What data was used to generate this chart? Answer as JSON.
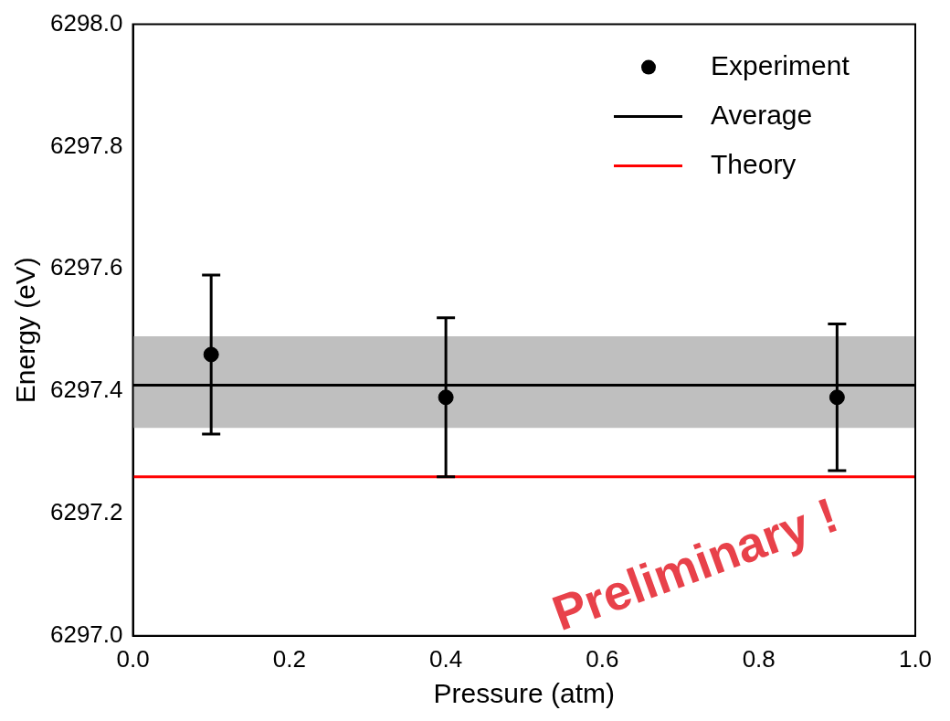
{
  "chart_data": {
    "type": "scatter",
    "xlabel": "Pressure (atm)",
    "ylabel": "Energy (eV)",
    "series": [
      {
        "name": "Experiment",
        "color": "#000000",
        "x": [
          0.1,
          0.4,
          0.9
        ],
        "values": [
          6297.46,
          6297.39,
          6297.39
        ],
        "errors": [
          0.13,
          0.13,
          0.12
        ]
      }
    ],
    "ref_lines": [
      {
        "axis": "y",
        "value": 6297.41,
        "label": "Average",
        "color": "#000000"
      },
      {
        "axis": "y",
        "value": 6297.26,
        "label": "Theory",
        "color": "#ff0000"
      }
    ],
    "bands": [
      {
        "axis": "y",
        "from": 6297.34,
        "to": 6297.49,
        "color": "#bfbfbf"
      }
    ],
    "annotations": [
      "Preliminary !"
    ],
    "marker": "circle",
    "legend": "top right",
    "xlim": [
      0,
      1
    ],
    "ylim": [
      6297,
      6298
    ],
    "xticks": [
      {
        "value": 0,
        "label": "0.0"
      },
      0.2,
      0.4,
      0.6,
      0.8,
      {
        "value": 1,
        "label": "1.0"
      }
    ],
    "yticks": [
      {
        "value": 6297,
        "label": "6297.0"
      },
      6297.2,
      6297.4,
      6297.6,
      6297.8,
      {
        "value": 6298,
        "label": "6298.0"
      }
    ]
  }
}
